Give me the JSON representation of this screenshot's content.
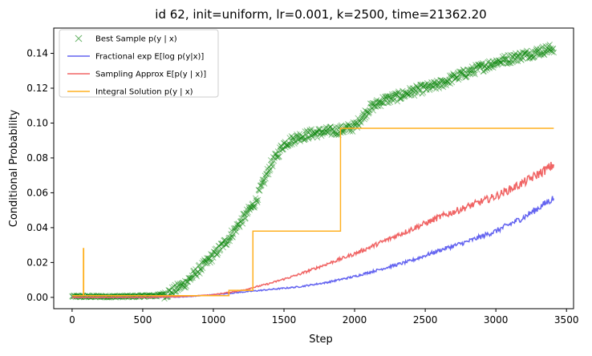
{
  "chart_data": {
    "type": "line",
    "title": "id 62, init=uniform, lr=0.001, k=2500, time=21362.20",
    "xlabel": "Step",
    "ylabel": "Conditional Probability",
    "xlim": [
      -130,
      3550
    ],
    "ylim": [
      -0.0065,
      0.1545
    ],
    "xticks": [
      0,
      500,
      1000,
      1500,
      2000,
      2500,
      3000,
      3500
    ],
    "xtick_labels": [
      "0",
      "500",
      "1000",
      "1500",
      "2000",
      "2500",
      "3000",
      "3500"
    ],
    "yticks": [
      0.0,
      0.02,
      0.04,
      0.06,
      0.08,
      0.1,
      0.12,
      0.14
    ],
    "ytick_labels": [
      "0.00",
      "0.02",
      "0.04",
      "0.06",
      "0.08",
      "0.10",
      "0.12",
      "0.14"
    ],
    "grid": false,
    "legend_position": "upper-left",
    "series": [
      {
        "name": "Best Sample p(y | x)",
        "kind": "scatter",
        "marker": "x",
        "color": "#008000",
        "x": [
          0,
          200,
          400,
          600,
          700,
          800,
          900,
          1000,
          1100,
          1200,
          1300,
          1400,
          1500,
          1600,
          1700,
          1800,
          1900,
          2000,
          2100,
          2200,
          2300,
          2400,
          2500,
          2600,
          2700,
          2800,
          2900,
          3000,
          3100,
          3200,
          3300,
          3410
        ],
        "y": [
          0.0005,
          0.0005,
          0.0005,
          0.001,
          0.003,
          0.008,
          0.016,
          0.024,
          0.033,
          0.044,
          0.055,
          0.075,
          0.088,
          0.092,
          0.094,
          0.095,
          0.096,
          0.098,
          0.108,
          0.113,
          0.115,
          0.118,
          0.12,
          0.122,
          0.126,
          0.129,
          0.132,
          0.135,
          0.137,
          0.139,
          0.141,
          0.143
        ]
      },
      {
        "name": "Fractional exp E[log p(y|x)]",
        "kind": "line",
        "color": "#6464f0",
        "x": [
          0,
          500,
          800,
          1000,
          1200,
          1400,
          1600,
          1800,
          2000,
          2200,
          2400,
          2600,
          2800,
          3000,
          3200,
          3410
        ],
        "y": [
          0.0,
          0.0,
          0.0003,
          0.0015,
          0.003,
          0.0045,
          0.006,
          0.0085,
          0.012,
          0.0165,
          0.021,
          0.027,
          0.032,
          0.038,
          0.046,
          0.057
        ]
      },
      {
        "name": "Sampling Approx E[p(y | x)]",
        "kind": "line",
        "color": "#f06464",
        "x": [
          0,
          500,
          800,
          1000,
          1200,
          1400,
          1600,
          1800,
          2000,
          2200,
          2400,
          2600,
          2800,
          3000,
          3200,
          3410
        ],
        "y": [
          0.0,
          0.0,
          0.0005,
          0.0015,
          0.004,
          0.008,
          0.013,
          0.019,
          0.025,
          0.032,
          0.039,
          0.046,
          0.052,
          0.058,
          0.066,
          0.076
        ]
      },
      {
        "name": "Integral Solution p(y | x)",
        "kind": "step",
        "color": "#ffb020",
        "x": [
          0,
          80,
          80,
          82,
          82,
          1110,
          1110,
          1280,
          1280,
          1900,
          1900,
          3410
        ],
        "y": [
          0.001,
          0.001,
          0.028,
          0.028,
          0.001,
          0.001,
          0.004,
          0.004,
          0.038,
          0.038,
          0.097,
          0.097
        ]
      }
    ]
  }
}
